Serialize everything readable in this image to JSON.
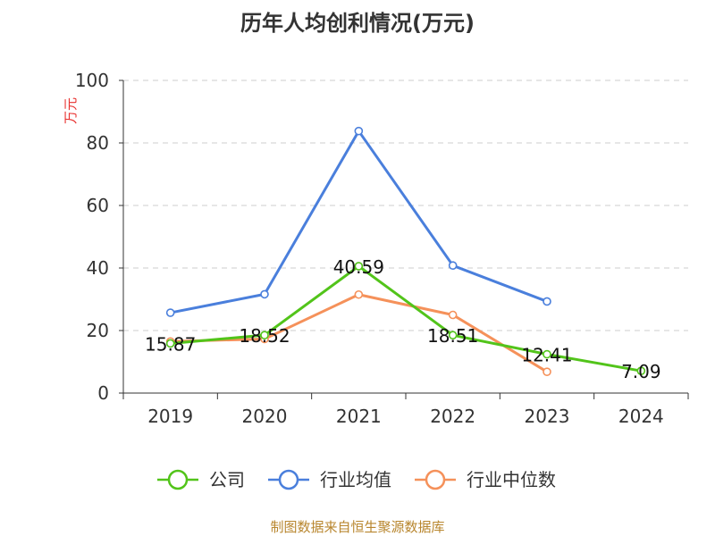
{
  "chart_data": {
    "type": "line",
    "title": "历年人均创利情况(万元)",
    "ylabel": "万元",
    "xlabel": "",
    "categories": [
      "2019",
      "2020",
      "2021",
      "2022",
      "2023",
      "2024"
    ],
    "ylim": [
      0,
      100
    ],
    "yticks": [
      0,
      20,
      40,
      60,
      80,
      100
    ],
    "grid": true,
    "legend_position": "bottom",
    "series": [
      {
        "name": "公司",
        "color": "#52c41a",
        "values": [
          15.87,
          18.52,
          40.59,
          18.51,
          12.41,
          7.09
        ],
        "labels": [
          "15.87",
          "18.52",
          "40.59",
          "18.51",
          "12.41",
          "7.09"
        ]
      },
      {
        "name": "行业均值",
        "color": "#4a7fdc",
        "values": [
          25.7,
          31.6,
          83.8,
          40.8,
          29.3,
          null
        ]
      },
      {
        "name": "行业中位数",
        "color": "#f5915a",
        "values": [
          16.5,
          17.3,
          31.5,
          25.0,
          6.8,
          null
        ]
      }
    ]
  },
  "source": "制图数据来自恒生聚源数据库"
}
